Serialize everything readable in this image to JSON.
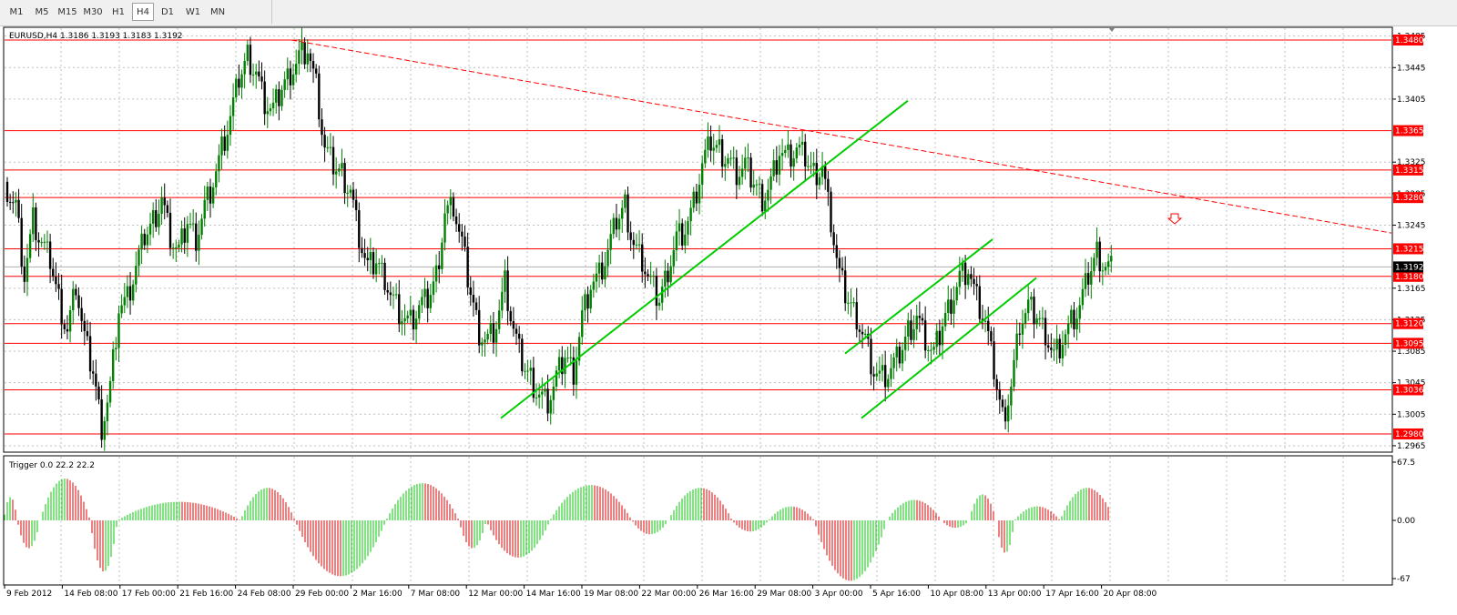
{
  "toolbar": {
    "timeframes": [
      "M1",
      "M5",
      "M15",
      "M30",
      "H1",
      "H4",
      "D1",
      "W1",
      "MN"
    ],
    "active": "H4"
  },
  "main_chart": {
    "title": "EURUSD,H4  1.3186 1.3193 1.3183 1.3192",
    "current_price": "1.3192"
  },
  "oscillator": {
    "title": "Trigger 0.0 22.2 22.2"
  },
  "colors": {
    "bull_candle": "#008000",
    "bear_candle": "#000000",
    "horizontal_level": "#ff0000",
    "trend_line": "#00cc00",
    "resistance_dash": "#ff0000",
    "level_label_bg": "#ff0000",
    "current_price_bg": "#000000",
    "hist_up": "#00c800",
    "hist_down": "#e00000",
    "grid": "#c0c0c0"
  },
  "chart_data": [
    {
      "type": "candlestick",
      "symbol": "EURUSD",
      "timeframe": "H4",
      "ohlc_header": {
        "open": 1.3186,
        "high": 1.3193,
        "low": 1.3183,
        "close": 1.3192
      },
      "ylim": [
        1.2958,
        1.3495
      ],
      "y_ticks": [
        "1.3485",
        "1.3445",
        "1.3405",
        "1.3325",
        "1.3285",
        "1.3245",
        "1.3165",
        "1.3125",
        "1.3085",
        "1.3045",
        "1.3005",
        "1.2965"
      ],
      "x_ticks": [
        "9 Feb 2012",
        "14 Feb 08:00",
        "17 Feb 00:00",
        "21 Feb 16:00",
        "24 Feb 08:00",
        "29 Feb 00:00",
        "2 Mar 16:00",
        "7 Mar 08:00",
        "12 Mar 00:00",
        "14 Mar 16:00",
        "19 Mar 08:00",
        "22 Mar 00:00",
        "26 Mar 16:00",
        "29 Mar 08:00",
        "3 Apr 00:00",
        "5 Apr 16:00",
        "10 Apr 08:00",
        "13 Apr 00:00",
        "17 Apr 16:00",
        "20 Apr 08:00"
      ],
      "horizontal_levels": [
        "1.3480",
        "1.3365",
        "1.3315",
        "1.3280",
        "1.3215",
        "1.3180",
        "1.3120",
        "1.3095",
        "1.3036",
        "1.2980"
      ],
      "current_price": "1.3192",
      "grid": true,
      "trend_lines": [
        {
          "style": "dashed",
          "color": "red",
          "from": {
            "x": "29 Feb 00:00",
            "y": 1.348
          },
          "to": {
            "x": "beyond 20 Apr 08:00",
            "y": 1.3235
          }
        },
        {
          "style": "solid",
          "color": "green",
          "from": {
            "x": "14 Mar 00:00",
            "y": 1.3
          },
          "to": {
            "x": "3 Apr 16:00",
            "y": 1.3403
          }
        },
        {
          "style": "solid",
          "color": "green",
          "from": {
            "x": "5 Apr 00:00",
            "y": 1.3082
          },
          "to": {
            "x": "12 Apr 12:00",
            "y": 1.3227
          }
        },
        {
          "style": "solid",
          "color": "green",
          "from": {
            "x": "5 Apr 00:00",
            "y": 1.3
          },
          "to": {
            "x": "17 Apr 08:00",
            "y": 1.3178
          }
        }
      ],
      "close_series": [
        1.3292,
        1.327,
        1.318,
        1.325,
        1.322,
        1.32,
        1.315,
        1.311,
        1.317,
        1.31,
        1.306,
        1.299,
        1.304,
        1.314,
        1.315,
        1.319,
        1.323,
        1.325,
        1.328,
        1.323,
        1.321,
        1.325,
        1.323,
        1.327,
        1.33,
        1.334,
        1.338,
        1.343,
        1.346,
        1.344,
        1.34,
        1.339,
        1.342,
        1.344,
        1.346,
        1.347,
        1.342,
        1.334,
        1.332,
        1.331,
        1.329,
        1.323,
        1.319,
        1.32,
        1.318,
        1.315,
        1.313,
        1.312,
        1.314,
        1.315,
        1.318,
        1.326,
        1.327,
        1.322,
        1.316,
        1.311,
        1.31,
        1.312,
        1.317,
        1.311,
        1.307,
        1.305,
        1.303,
        1.302,
        1.305,
        1.308,
        1.306,
        1.313,
        1.317,
        1.318,
        1.321,
        1.325,
        1.327,
        1.322,
        1.32,
        1.317,
        1.315,
        1.319,
        1.323,
        1.324,
        1.327,
        1.332,
        1.335,
        1.334,
        1.333,
        1.331,
        1.332,
        1.33,
        1.328,
        1.33,
        1.334,
        1.333,
        1.334,
        1.333,
        1.331,
        1.332,
        1.325,
        1.318,
        1.315,
        1.313,
        1.31,
        1.306,
        1.305,
        1.306,
        1.308,
        1.311,
        1.313,
        1.31,
        1.308,
        1.312,
        1.315,
        1.318,
        1.319,
        1.315,
        1.312,
        1.306,
        1.3,
        1.304,
        1.312,
        1.314,
        1.313,
        1.311,
        1.308,
        1.31,
        1.312,
        1.314,
        1.318,
        1.321,
        1.3192
      ]
    },
    {
      "type": "histogram",
      "title": "Trigger 0.0 22.2 22.2",
      "ylim": [
        -67,
        67.5
      ],
      "y_ticks": [
        "67.5",
        "0.00",
        "-67"
      ],
      "colors": {
        "up": "green",
        "down": "red"
      }
    }
  ]
}
